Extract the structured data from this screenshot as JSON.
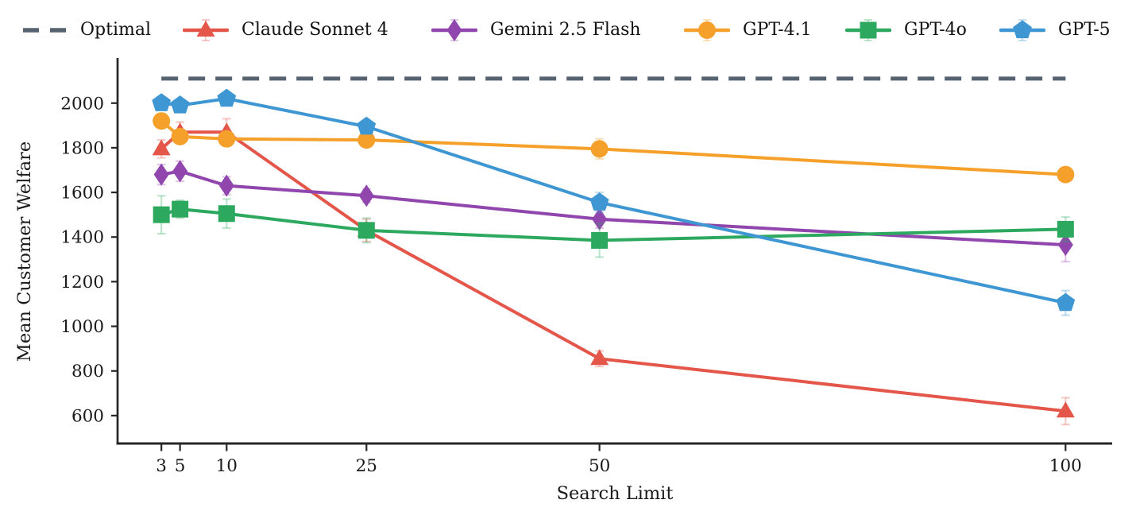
{
  "figure": {
    "background": "#ffffff"
  },
  "chart_data": {
    "type": "line",
    "title": "",
    "xlabel": "Search Limit",
    "ylabel": "Mean Customer Welfare",
    "x": [
      3,
      5,
      10,
      25,
      50,
      100
    ],
    "x_tick_labels": [
      "3",
      "5",
      "10",
      "25",
      "50",
      "100"
    ],
    "y_ticks": [
      600,
      800,
      1000,
      1200,
      1400,
      1600,
      1800,
      2000
    ],
    "xlim": [
      -1.7,
      105
    ],
    "ylim": [
      475,
      2195
    ],
    "grid": false,
    "legend_position": "top",
    "axis_color": "#262626",
    "optimal": {
      "name": "Optimal",
      "value": 2110,
      "color": "#566270",
      "style": "dashed"
    },
    "series": [
      {
        "name": "Claude Sonnet 4",
        "marker": "triangle",
        "color": "#e4564a",
        "values": [
          1795,
          1870,
          1870,
          1430,
          855,
          620
        ],
        "errors": [
          40,
          45,
          60,
          50,
          35,
          60
        ]
      },
      {
        "name": "Gemini 2.5 Flash",
        "marker": "diamond",
        "color": "#9146ad",
        "values": [
          1680,
          1695,
          1630,
          1585,
          1480,
          1365
        ],
        "errors": [
          45,
          45,
          40,
          30,
          40,
          75
        ]
      },
      {
        "name": "GPT-4.1",
        "marker": "circle",
        "color": "#f5a02a",
        "values": [
          1920,
          1850,
          1840,
          1835,
          1795,
          1680
        ],
        "errors": [
          25,
          30,
          20,
          15,
          45,
          25
        ]
      },
      {
        "name": "GPT-4o",
        "marker": "square",
        "color": "#2ca95f",
        "values": [
          1500,
          1525,
          1505,
          1430,
          1385,
          1435
        ],
        "errors": [
          85,
          40,
          65,
          55,
          75,
          55
        ]
      },
      {
        "name": "GPT-5",
        "marker": "pentagon",
        "color": "#3e96d2",
        "values": [
          2000,
          1990,
          2020,
          1895,
          1555,
          1105
        ],
        "errors": [
          20,
          15,
          15,
          20,
          45,
          55
        ]
      }
    ]
  }
}
